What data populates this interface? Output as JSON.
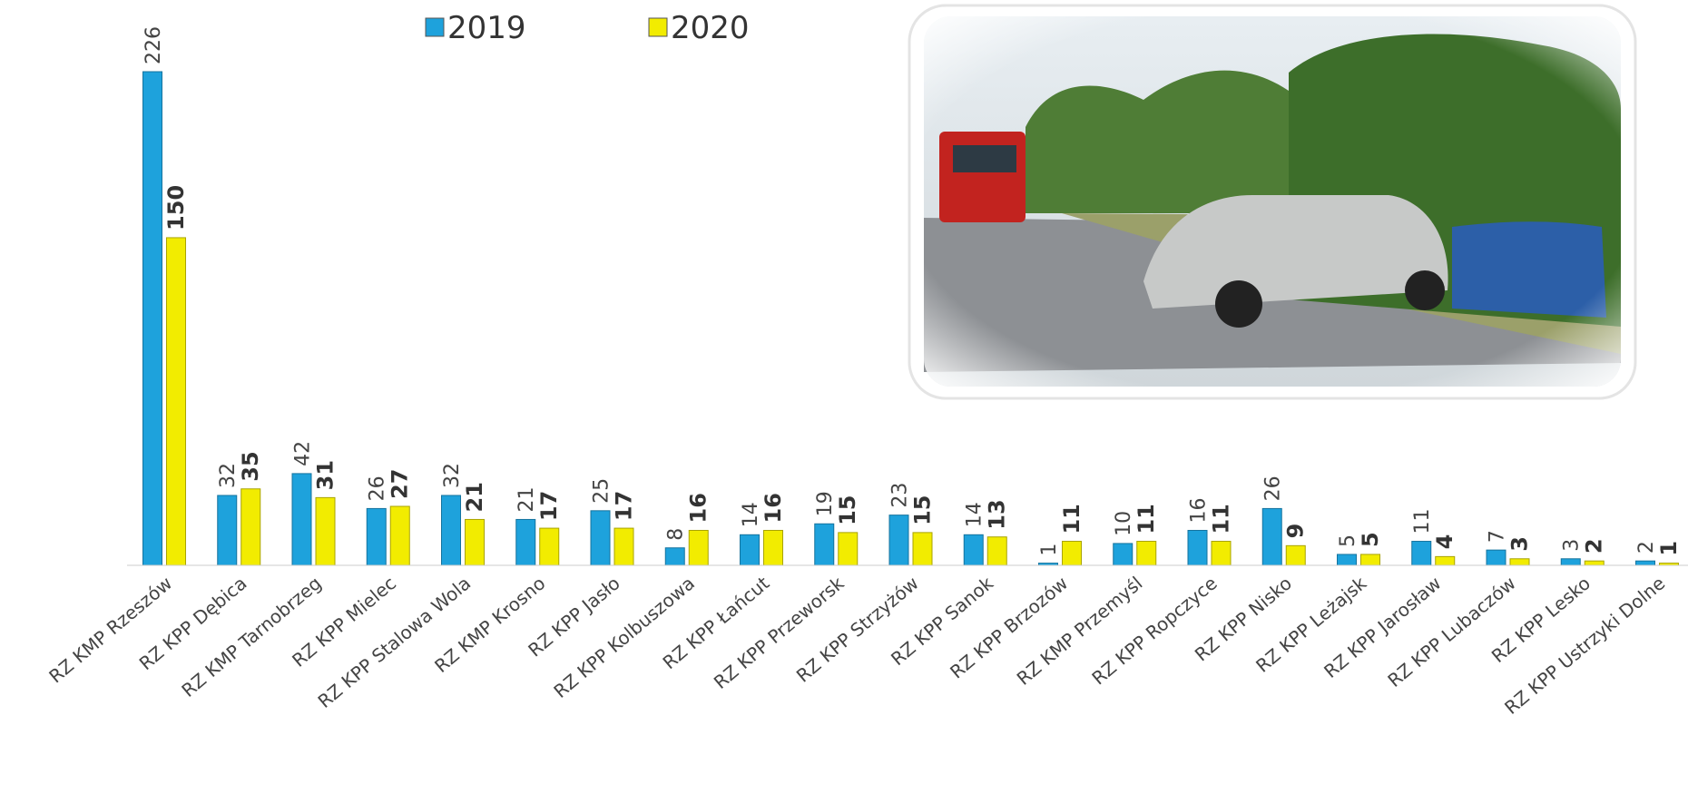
{
  "chart_data": {
    "type": "bar",
    "categories": [
      "RZ KMP Rzeszów",
      "RZ KPP Dębica",
      "RZ KMP Tarnobrzeg",
      "RZ KPP Mielec",
      "RZ KPP Stalowa Wola",
      "RZ KMP Krosno",
      "RZ KPP Jasło",
      "RZ KPP Kolbuszowa",
      "RZ KPP Łańcut",
      "RZ KPP Przeworsk",
      "RZ KPP Strzyżów",
      "RZ KPP Sanok",
      "RZ KPP Brzozów",
      "RZ KMP Przemyśl",
      "RZ KPP Ropczyce",
      "RZ KPP Nisko",
      "RZ KPP Leżajsk",
      "RZ KPP Jarosław",
      "RZ KPP Lubaczów",
      "RZ KPP Lesko",
      "RZ KPP Ustrzyki Dolne"
    ],
    "series": [
      {
        "name": "2019",
        "color": "#1ea2dc",
        "values": [
          226,
          32,
          42,
          26,
          32,
          21,
          25,
          8,
          14,
          19,
          23,
          14,
          1,
          10,
          16,
          26,
          5,
          11,
          7,
          3,
          2
        ]
      },
      {
        "name": "2020",
        "color": "#f2ec00",
        "values": [
          150,
          35,
          31,
          27,
          21,
          17,
          17,
          16,
          16,
          15,
          15,
          13,
          11,
          11,
          11,
          9,
          5,
          4,
          3,
          2,
          1
        ]
      }
    ]
  }
}
